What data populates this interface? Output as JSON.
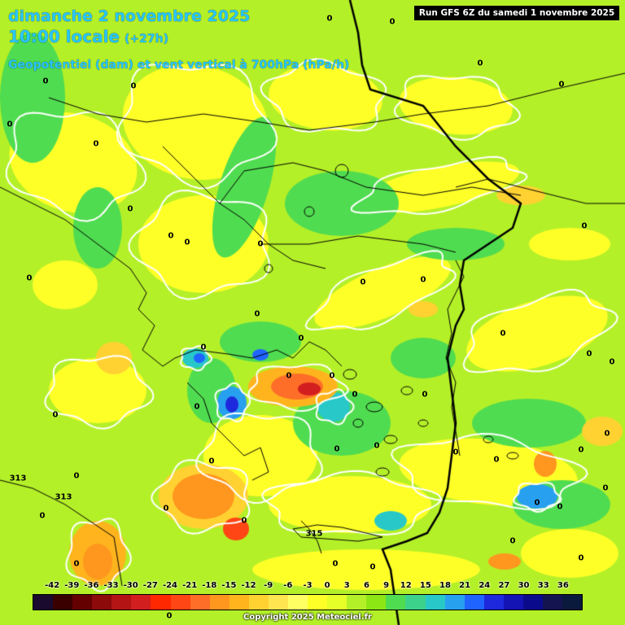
{
  "header": {
    "title_date": "dimanche 2 novembre 2025",
    "title_time": "10:00 locale",
    "title_hours": "(+27h)",
    "title_param": "Geopotentiel (dam) et vent vertical à 700hPa (hPa/h)",
    "run_info": "Run GFS 6Z du samedi 1 novembre 2025",
    "text_color": "#28c8ff"
  },
  "map": {
    "region": "Greece / Balkans / Aegean",
    "contour_labels": [
      "0",
      "0",
      "0",
      "0",
      "0",
      "0",
      "0",
      "0",
      "0",
      "0",
      "0",
      "0",
      "0",
      "0",
      "0",
      "0",
      "0",
      "0",
      "0",
      "0",
      "0",
      "0",
      "0",
      "0",
      "0",
      "0",
      "0",
      "0",
      "0",
      "0",
      "0",
      "0",
      "0",
      "0",
      "0",
      "0",
      "0",
      "0",
      "0",
      "0",
      "0",
      "0",
      "0",
      "0",
      "0",
      "0",
      "0",
      "0",
      "313",
      "313",
      "315"
    ],
    "geopotential_contours": [
      "313",
      "313",
      "315"
    ]
  },
  "legend": {
    "ticks": [
      "-42",
      "-39",
      "-36",
      "-33",
      "-30",
      "-27",
      "-24",
      "-21",
      "-18",
      "-15",
      "-12",
      "-9",
      "-6",
      "-3",
      "0",
      "3",
      "6",
      "9",
      "12",
      "15",
      "18",
      "21",
      "24",
      "27",
      "30",
      "33",
      "36"
    ],
    "colors": [
      "#1a0a2e",
      "#3a0000",
      "#640000",
      "#8c0a0a",
      "#b41414",
      "#d21e1e",
      "#ff2800",
      "#ff4614",
      "#ff6e28",
      "#ff961e",
      "#ffb41e",
      "#ffd232",
      "#ffe650",
      "#ffff64",
      "#ffff28",
      "#e6ff28",
      "#b4f028",
      "#8ce614",
      "#50dc50",
      "#3cd28c",
      "#28c8c8",
      "#28a0f0",
      "#2064ff",
      "#1e28dc",
      "#1414b4",
      "#0a0a8c",
      "#141450",
      "#0a1a3c"
    ],
    "copyright": "Copyright 2025 Meteociel.fr"
  }
}
